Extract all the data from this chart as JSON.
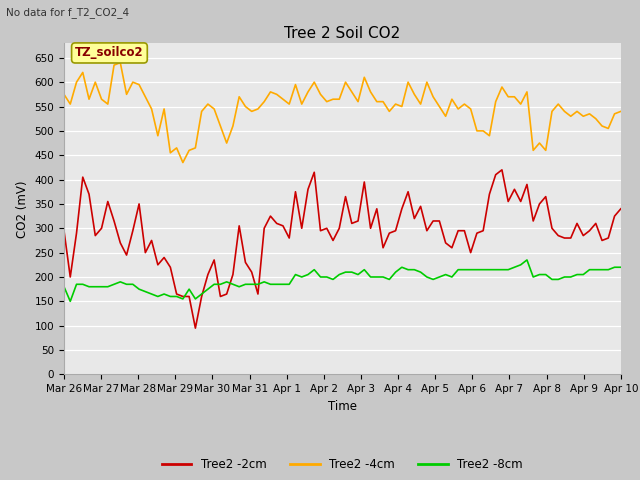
{
  "title": "Tree 2 Soil CO2",
  "subtitle": "No data for f_T2_CO2_4",
  "xlabel": "Time",
  "ylabel": "CO2 (mV)",
  "ylim": [
    0,
    680
  ],
  "yticks": [
    0,
    50,
    100,
    150,
    200,
    250,
    300,
    350,
    400,
    450,
    500,
    550,
    600,
    650
  ],
  "fig_bg": "#c8c8c8",
  "plot_bg": "#e8e8e8",
  "annotation_text": "TZ_soilco2",
  "annotation_bg": "#ffff99",
  "annotation_border": "#999900",
  "legend_labels": [
    "Tree2 -2cm",
    "Tree2 -4cm",
    "Tree2 -8cm"
  ],
  "colors": {
    "red": "#cc0000",
    "orange": "#ffaa00",
    "green": "#00cc00"
  },
  "line_width": 1.2,
  "x_tick_labels": [
    "Mar 26",
    "Mar 27",
    "Mar 28",
    "Mar 29",
    "Mar 30",
    "Mar 31",
    "Apr 1",
    "Apr 2",
    "Apr 3",
    "Apr 4",
    "Apr 5",
    "Apr 6",
    "Apr 7",
    "Apr 8",
    "Apr 9",
    "Apr 10"
  ],
  "red_data": [
    295,
    200,
    290,
    405,
    370,
    285,
    300,
    355,
    315,
    270,
    245,
    295,
    350,
    250,
    275,
    225,
    240,
    220,
    165,
    160,
    160,
    95,
    160,
    205,
    235,
    160,
    165,
    205,
    305,
    230,
    210,
    165,
    300,
    325,
    310,
    305,
    280,
    375,
    300,
    380,
    415,
    295,
    300,
    275,
    300,
    365,
    310,
    315,
    395,
    300,
    340,
    260,
    290,
    295,
    340,
    375,
    320,
    345,
    295,
    315,
    315,
    270,
    260,
    295,
    295,
    250,
    290,
    295,
    370,
    410,
    420,
    355,
    380,
    355,
    390,
    315,
    350,
    365,
    300,
    285,
    280,
    280,
    310,
    285,
    295,
    310,
    275,
    280,
    325,
    340
  ],
  "orange_data": [
    575,
    555,
    600,
    620,
    565,
    600,
    565,
    555,
    635,
    640,
    575,
    600,
    595,
    570,
    545,
    490,
    545,
    455,
    465,
    435,
    460,
    465,
    540,
    555,
    545,
    510,
    475,
    510,
    570,
    550,
    540,
    545,
    560,
    580,
    575,
    565,
    555,
    595,
    555,
    580,
    600,
    575,
    560,
    565,
    565,
    600,
    580,
    560,
    610,
    580,
    560,
    560,
    540,
    555,
    550,
    600,
    575,
    555,
    600,
    570,
    550,
    530,
    565,
    545,
    555,
    545,
    500,
    500,
    490,
    560,
    590,
    570,
    570,
    555,
    580,
    460,
    475,
    460,
    540,
    555,
    540,
    530,
    540,
    530,
    535,
    525,
    510,
    505,
    535,
    540
  ],
  "green_data": [
    180,
    150,
    185,
    185,
    180,
    180,
    180,
    180,
    185,
    190,
    185,
    185,
    175,
    170,
    165,
    160,
    165,
    160,
    160,
    155,
    175,
    155,
    165,
    175,
    185,
    185,
    190,
    185,
    180,
    185,
    185,
    185,
    190,
    185,
    185,
    185,
    185,
    205,
    200,
    205,
    215,
    200,
    200,
    195,
    205,
    210,
    210,
    205,
    215,
    200,
    200,
    200,
    195,
    210,
    220,
    215,
    215,
    210,
    200,
    195,
    200,
    205,
    200,
    215,
    215,
    215,
    215,
    215,
    215,
    215,
    215,
    215,
    220,
    225,
    235,
    200,
    205,
    205,
    195,
    195,
    200,
    200,
    205,
    205,
    215,
    215,
    215,
    215,
    220,
    220
  ]
}
